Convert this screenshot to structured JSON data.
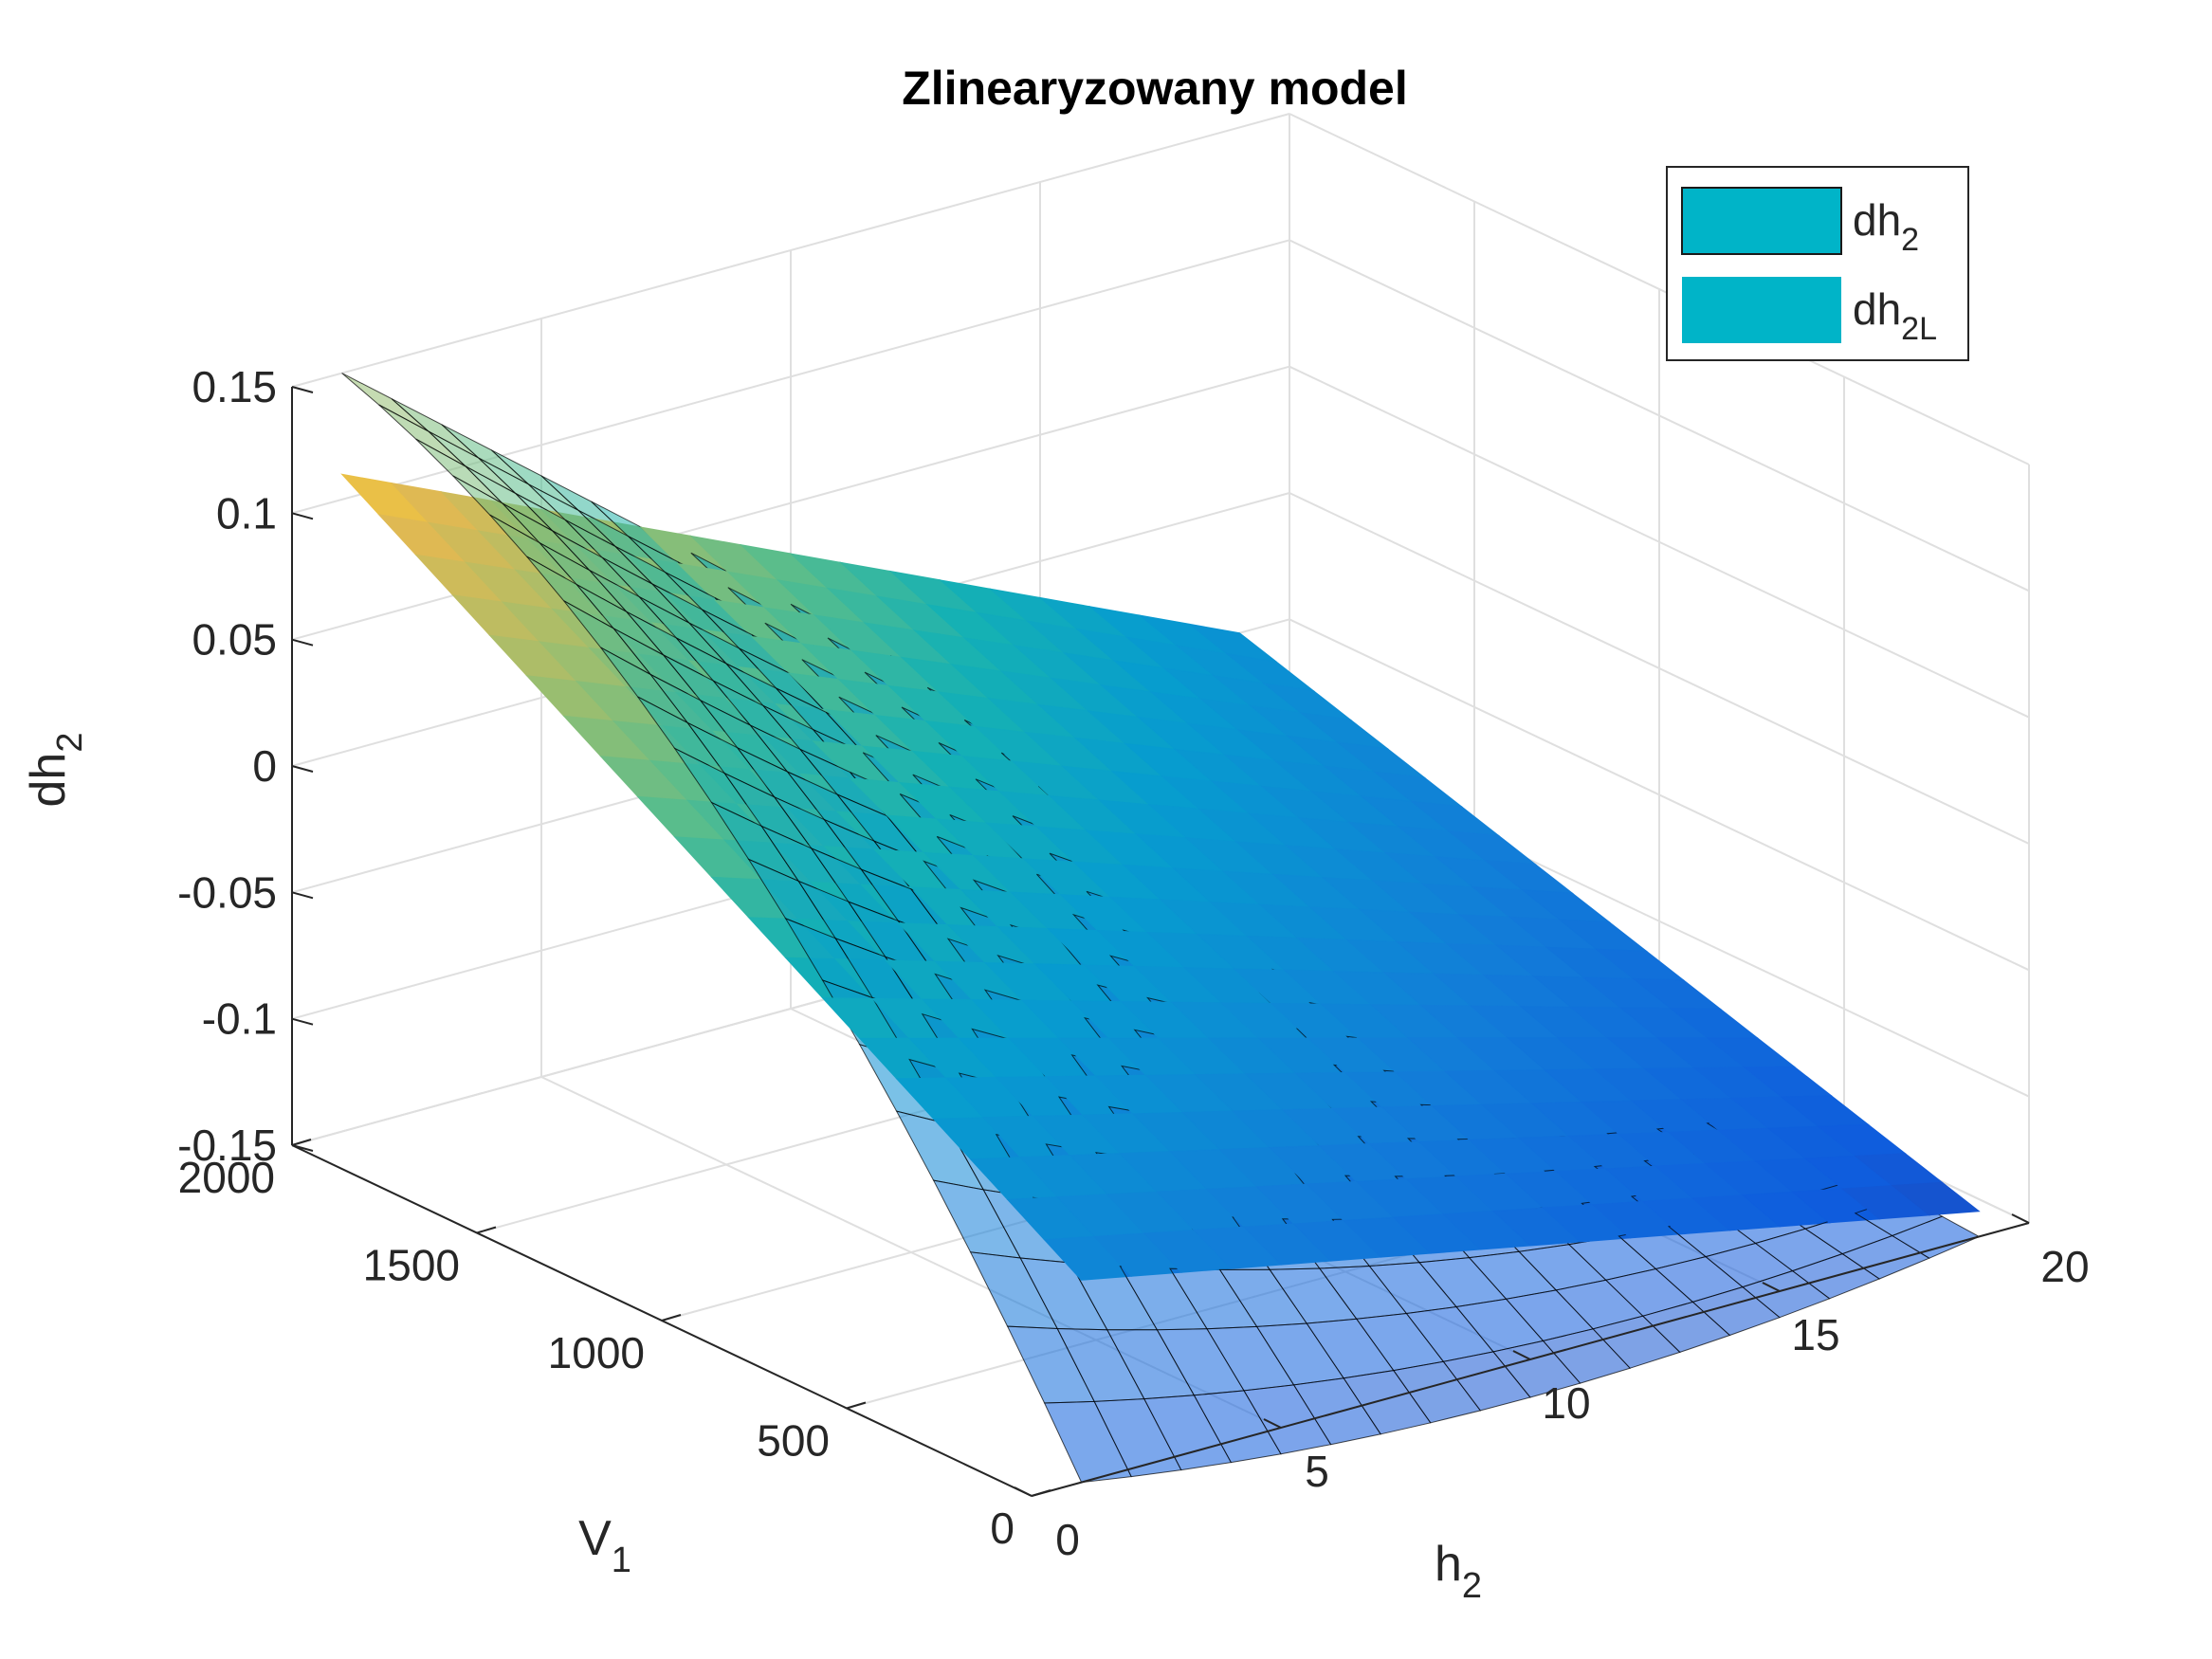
{
  "chart_data": {
    "type": "surface3d",
    "title": "Zlinearyzowany model",
    "xlabel": {
      "base": "h",
      "sub": "2"
    },
    "ylabel": {
      "base": "V",
      "sub": "1"
    },
    "zlabel": {
      "base": "dh",
      "sub": "2"
    },
    "xlim": [
      0,
      20
    ],
    "ylim": [
      0,
      2000
    ],
    "zlim": [
      -0.15,
      0.15
    ],
    "x_ticks": [
      "0",
      "5",
      "10",
      "15",
      "20"
    ],
    "y_ticks": [
      "0",
      "500",
      "1000",
      "1500",
      "2000"
    ],
    "z_ticks": [
      "-0.15",
      "-0.1",
      "-0.05",
      "0",
      "0.05",
      "0.1",
      "0.15"
    ],
    "grid": true,
    "legend": {
      "position": "top-right",
      "entries": [
        {
          "base": "dh",
          "sub": "2",
          "color": "#00b4c8"
        },
        {
          "base": "dh",
          "sub": "2L",
          "color": "#00b4c8"
        }
      ]
    },
    "series": [
      {
        "name": "dh2",
        "kind": "nonlinear surface",
        "grid_x": [
          1,
          19
        ],
        "grid_y": [
          0,
          2000
        ],
        "corners": {
          "h1_V0": -0.15,
          "h19_V0": -0.15,
          "h1_V2000": 0.15,
          "h19_V2000": -0.13
        },
        "edgecolor": "#000000",
        "facealpha": 0.55
      },
      {
        "name": "dh2L",
        "kind": "linearized plane",
        "grid_x": [
          1,
          19
        ],
        "grid_y": [
          0,
          2000
        ],
        "corners": {
          "h1_V0": -0.07,
          "h19_V0": -0.14,
          "h1_V2000": 0.11,
          "h19_V2000": -0.05
        },
        "colormap": "parula"
      }
    ]
  }
}
